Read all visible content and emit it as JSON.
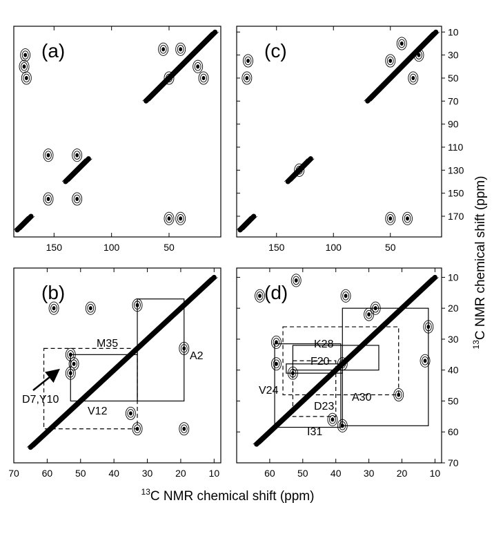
{
  "chart_data": [
    {
      "type": "contour",
      "title": "(a)",
      "xlim": [
        185,
        5
      ],
      "ylim": [
        188,
        5
      ],
      "xticks": [
        150,
        100,
        50
      ],
      "diagonal": [
        [
          10,
          70
        ],
        [
          120,
          140
        ],
        [
          170,
          182
        ]
      ],
      "peaks": {
        "x": [
          175,
          176,
          174,
          55,
          40,
          25,
          50,
          20,
          155,
          130,
          155,
          130,
          50,
          40
        ],
        "y": [
          30,
          40,
          50,
          25,
          25,
          40,
          50,
          50,
          117,
          117,
          155,
          155,
          172,
          172
        ]
      }
    },
    {
      "type": "contour",
      "title": "(b)",
      "xlim": [
        70,
        8
      ],
      "ylim": [
        70,
        7
      ],
      "xticks": [
        70,
        60,
        50,
        40,
        30,
        20,
        10
      ],
      "diagonal": [
        [
          10,
          65
        ]
      ],
      "peaks": {
        "x": [
          58,
          47,
          33,
          19,
          53,
          53,
          35,
          33,
          19,
          52
        ],
        "y": [
          20,
          20,
          19,
          33,
          35,
          41,
          54,
          59,
          59,
          38
        ]
      },
      "assignments": [
        {
          "label": "M35",
          "x": [
            33,
            53
          ],
          "y": [
            35,
            50
          ],
          "dashed": false
        },
        {
          "label": "A2",
          "x": [
            19,
            33
          ],
          "y": [
            17,
            50
          ],
          "dashed": false
        },
        {
          "label": "V12",
          "x": [
            33,
            61
          ],
          "y": [
            33,
            59
          ],
          "dashed": true
        }
      ],
      "annotation": "D7,Y10"
    },
    {
      "type": "contour",
      "title": "(c)",
      "xlim": [
        185,
        5
      ],
      "ylim": [
        188,
        5
      ],
      "xticks": [
        150,
        100,
        50
      ],
      "yticks": [
        10,
        30,
        50,
        70,
        90,
        110,
        130,
        150,
        170
      ],
      "diagonal": [
        [
          10,
          70
        ],
        [
          120,
          140
        ],
        [
          170,
          182
        ]
      ],
      "peaks": {
        "x": [
          175,
          176,
          40,
          25,
          50,
          30,
          50,
          130,
          35
        ],
        "y": [
          35,
          50,
          20,
          30,
          35,
          50,
          172,
          130,
          172
        ]
      }
    },
    {
      "type": "contour",
      "title": "(d)",
      "xlim": [
        70,
        8
      ],
      "ylim": [
        70,
        7
      ],
      "xticks": [
        60,
        50,
        40,
        30,
        20,
        10
      ],
      "yticks": [
        10,
        20,
        30,
        40,
        50,
        60,
        70
      ],
      "diagonal": [
        [
          10,
          64
        ]
      ],
      "peaks": {
        "x": [
          63,
          52,
          37,
          30,
          28,
          12,
          58,
          58,
          38,
          53,
          21,
          38,
          13,
          41
        ],
        "y": [
          16,
          11,
          16,
          22,
          20,
          26,
          31,
          38,
          38,
          41,
          48,
          58,
          37,
          56
        ]
      },
      "assignments": [
        {
          "label": "K28",
          "x": [
            27,
            53
          ],
          "y": [
            32,
            40
          ],
          "dashed": false
        },
        {
          "label": "F20",
          "x": [
            38,
            55
          ],
          "y": [
            38,
            41
          ],
          "dashed": false
        },
        {
          "label": "V24",
          "x": [
            38.5,
            58.5
          ],
          "y": [
            31.5,
            58.5
          ],
          "dashed": false
        },
        {
          "label": "A30",
          "x": [
            21,
            56
          ],
          "y": [
            26,
            48
          ],
          "dashed": true
        },
        {
          "label": "D23",
          "x": [
            40,
            53
          ],
          "y": [
            37,
            55
          ],
          "dashed": true
        },
        {
          "label": "I31",
          "x": [
            12,
            38
          ],
          "y": [
            20,
            58
          ],
          "dashed": false
        }
      ]
    }
  ],
  "x_label": {
    "sup": "13",
    "text": "C NMR chemical shift (ppm)"
  },
  "y_label": {
    "sup": "13",
    "text": "C NMR chemical shift (ppm)"
  }
}
